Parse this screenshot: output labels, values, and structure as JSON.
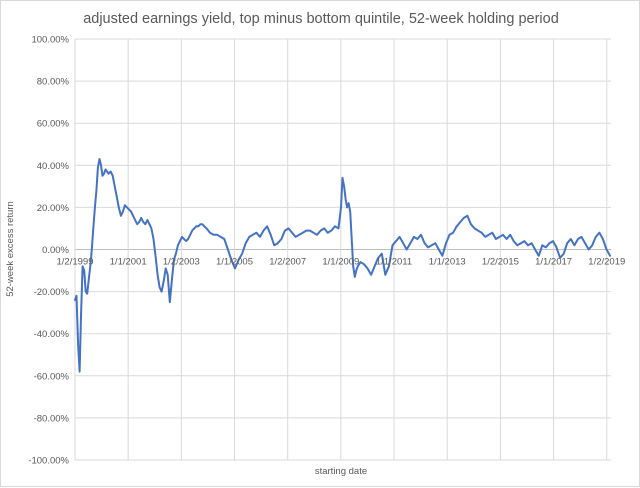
{
  "chart_data": {
    "type": "line",
    "title": "adjusted earnings yield, top minus bottom quintile, 52-week holding period",
    "xlabel": "starting date",
    "ylabel": "52-week excess return",
    "ylim": [
      -1.0,
      1.0
    ],
    "yticks": [
      1.0,
      0.8,
      0.6,
      0.4,
      0.2,
      0.0,
      -0.2,
      -0.4,
      -0.6,
      -0.8,
      -1.0
    ],
    "ytick_labels": [
      "100.00%",
      "80.00%",
      "60.00%",
      "40.00%",
      "20.00%",
      "0.00%",
      "-20.00%",
      "-40.00%",
      "-60.00%",
      "-80.00%",
      "-100.00%"
    ],
    "xlim": [
      "1999-01-02",
      "2019-03-01"
    ],
    "xticks": [
      "1999-01-02",
      "2001-01-01",
      "2003-01-02",
      "2005-01-01",
      "2007-01-02",
      "2009-01-01",
      "2011-01-01",
      "2013-01-01",
      "2015-01-02",
      "2017-01-01",
      "2019-01-02"
    ],
    "xtick_labels": [
      "1/2/1999",
      "1/1/2001",
      "1/2/2003",
      "1/1/2005",
      "1/2/2007",
      "1/1/2009",
      "1/1/2011",
      "1/1/2013",
      "1/2/2015",
      "1/1/2017",
      "1/2/2019"
    ],
    "grid": true,
    "legend": "none",
    "series": [
      {
        "color": "#4472c4",
        "x": [
          "1999-01-02",
          "1999-01-23",
          "1999-02-13",
          "1999-03-06",
          "1999-03-27",
          "1999-04-17",
          "1999-05-08",
          "1999-05-29",
          "1999-06-19",
          "1999-07-10",
          "1999-07-31",
          "1999-08-21",
          "1999-09-11",
          "1999-10-02",
          "1999-10-23",
          "1999-11-13",
          "1999-12-04",
          "1999-12-25",
          "2000-01-15",
          "2000-02-05",
          "2000-02-26",
          "2000-03-18",
          "2000-04-08",
          "2000-05-06",
          "2000-06-03",
          "2000-07-01",
          "2000-07-29",
          "2000-08-26",
          "2000-09-23",
          "2000-10-21",
          "2000-11-18",
          "2000-12-16",
          "2001-01-13",
          "2001-02-10",
          "2001-03-10",
          "2001-04-07",
          "2001-05-05",
          "2001-06-02",
          "2001-06-30",
          "2001-07-28",
          "2001-08-25",
          "2001-09-22",
          "2001-10-20",
          "2001-11-17",
          "2001-12-15",
          "2002-01-12",
          "2002-02-09",
          "2002-03-09",
          "2002-04-06",
          "2002-05-04",
          "2002-06-01",
          "2002-06-29",
          "2002-07-27",
          "2002-08-24",
          "2002-09-21",
          "2002-10-19",
          "2002-11-16",
          "2002-12-14",
          "2003-01-11",
          "2003-02-08",
          "2003-03-08",
          "2003-04-05",
          "2003-05-03",
          "2003-05-31",
          "2003-06-28",
          "2003-07-26",
          "2003-08-23",
          "2003-09-20",
          "2003-10-18",
          "2003-11-15",
          "2003-12-13",
          "2004-01-31",
          "2004-03-20",
          "2004-05-08",
          "2004-06-26",
          "2004-08-14",
          "2004-10-02",
          "2004-11-20",
          "2005-01-08",
          "2005-02-26",
          "2005-04-16",
          "2005-06-04",
          "2005-07-23",
          "2005-09-10",
          "2005-10-29",
          "2005-12-17",
          "2006-02-04",
          "2006-03-25",
          "2006-05-13",
          "2006-07-01",
          "2006-08-19",
          "2006-10-07",
          "2006-11-25",
          "2007-01-13",
          "2007-03-03",
          "2007-04-21",
          "2007-06-09",
          "2007-07-28",
          "2007-09-15",
          "2007-11-03",
          "2007-12-22",
          "2008-02-09",
          "2008-03-29",
          "2008-05-17",
          "2008-07-05",
          "2008-08-23",
          "2008-10-11",
          "2008-11-29",
          "2009-01-03",
          "2009-01-24",
          "2009-02-14",
          "2009-03-07",
          "2009-03-28",
          "2009-04-18",
          "2009-05-09",
          "2009-05-30",
          "2009-06-20",
          "2009-07-11",
          "2009-08-01",
          "2009-08-22",
          "2009-09-26",
          "2009-11-14",
          "2010-01-02",
          "2010-02-20",
          "2010-04-10",
          "2010-05-29",
          "2010-07-17",
          "2010-09-04",
          "2010-10-23",
          "2010-12-11",
          "2011-01-29",
          "2011-03-19",
          "2011-05-07",
          "2011-06-25",
          "2011-08-13",
          "2011-10-01",
          "2011-11-19",
          "2012-01-07",
          "2012-02-25",
          "2012-04-14",
          "2012-06-02",
          "2012-07-21",
          "2012-09-08",
          "2012-10-27",
          "2012-12-15",
          "2013-02-02",
          "2013-03-23",
          "2013-05-11",
          "2013-06-29",
          "2013-08-17",
          "2013-10-05",
          "2013-11-23",
          "2014-01-11",
          "2014-03-01",
          "2014-04-19",
          "2014-06-07",
          "2014-07-26",
          "2014-09-13",
          "2014-11-01",
          "2014-12-20",
          "2015-02-07",
          "2015-03-28",
          "2015-05-16",
          "2015-07-04",
          "2015-08-22",
          "2015-10-10",
          "2015-11-28",
          "2016-01-16",
          "2016-03-05",
          "2016-04-23",
          "2016-06-11",
          "2016-07-30",
          "2016-09-17",
          "2016-11-05",
          "2016-12-24",
          "2017-02-11",
          "2017-04-01",
          "2017-05-20",
          "2017-07-08",
          "2017-08-26",
          "2017-10-14",
          "2017-12-02",
          "2018-01-20",
          "2018-03-10",
          "2018-04-28",
          "2018-06-16",
          "2018-08-04",
          "2018-09-22",
          "2018-11-10",
          "2018-12-29",
          "2019-02-16"
        ],
        "values": [
          -0.24,
          -0.22,
          -0.45,
          -0.58,
          -0.3,
          -0.08,
          -0.1,
          -0.2,
          -0.21,
          -0.14,
          -0.08,
          0.0,
          0.1,
          0.2,
          0.28,
          0.39,
          0.43,
          0.4,
          0.35,
          0.36,
          0.38,
          0.37,
          0.36,
          0.37,
          0.35,
          0.3,
          0.25,
          0.2,
          0.16,
          0.18,
          0.21,
          0.2,
          0.19,
          0.18,
          0.16,
          0.14,
          0.12,
          0.13,
          0.15,
          0.13,
          0.12,
          0.14,
          0.12,
          0.1,
          0.05,
          -0.03,
          -0.12,
          -0.18,
          -0.2,
          -0.15,
          -0.09,
          -0.12,
          -0.25,
          -0.15,
          -0.05,
          -0.02,
          0.02,
          0.04,
          0.06,
          0.05,
          0.04,
          0.05,
          0.07,
          0.09,
          0.1,
          0.11,
          0.11,
          0.12,
          0.12,
          0.11,
          0.1,
          0.08,
          0.07,
          0.07,
          0.06,
          0.05,
          0.0,
          -0.05,
          -0.09,
          -0.05,
          -0.02,
          0.03,
          0.06,
          0.07,
          0.08,
          0.06,
          0.09,
          0.11,
          0.07,
          0.02,
          0.03,
          0.05,
          0.09,
          0.1,
          0.08,
          0.06,
          0.07,
          0.08,
          0.09,
          0.09,
          0.08,
          0.07,
          0.09,
          0.1,
          0.08,
          0.09,
          0.11,
          0.1,
          0.2,
          0.34,
          0.3,
          0.24,
          0.2,
          0.22,
          0.18,
          0.05,
          -0.08,
          -0.13,
          -0.1,
          -0.08,
          -0.06,
          -0.07,
          -0.09,
          -0.12,
          -0.08,
          -0.04,
          -0.02,
          -0.12,
          -0.08,
          0.02,
          0.04,
          0.06,
          0.03,
          0.0,
          0.03,
          0.06,
          0.05,
          0.07,
          0.03,
          0.01,
          0.02,
          0.03,
          0.0,
          -0.03,
          0.03,
          0.07,
          0.08,
          0.11,
          0.13,
          0.15,
          0.16,
          0.12,
          0.1,
          0.09,
          0.08,
          0.06,
          0.07,
          0.08,
          0.05,
          0.06,
          0.07,
          0.05,
          0.07,
          0.04,
          0.02,
          0.03,
          0.04,
          0.02,
          0.03,
          0.0,
          -0.03,
          0.02,
          0.01,
          0.03,
          0.04,
          0.01,
          -0.04,
          -0.02,
          0.03,
          0.05,
          0.02,
          0.05,
          0.06,
          0.03,
          0.0,
          0.02,
          0.06,
          0.08,
          0.05,
          0.0,
          -0.03
        ]
      }
    ]
  }
}
